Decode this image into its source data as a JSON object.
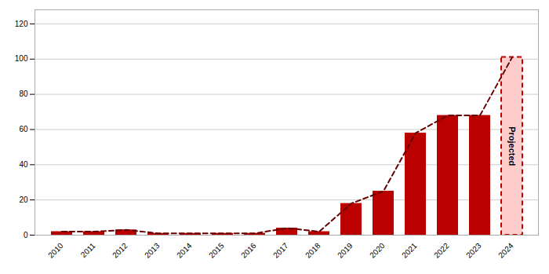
{
  "chart_data": {
    "type": "bar",
    "categories": [
      "2010",
      "2011",
      "2012",
      "2013",
      "2014",
      "2015",
      "2016",
      "2017",
      "2018",
      "2019",
      "2020",
      "2021",
      "2022",
      "2023",
      "2024"
    ],
    "series": [
      {
        "type": "bar",
        "colors": [
          "#BB0000",
          "#BB0000",
          "#BB0000",
          "#BB0000",
          "#BB0000",
          "#BB0000",
          "#BB0000",
          "#BB0000",
          "#BB0000",
          "#BB0000",
          "#BB0000",
          "#BB0000",
          "#BB0000",
          "#BB0000",
          "#FFCCCC"
        ],
        "values": [
          2,
          2,
          3,
          1,
          1,
          1,
          1,
          4,
          2,
          18,
          25,
          58,
          68,
          68,
          101
        ]
      },
      {
        "type": "line",
        "color": "#660000",
        "line_style": "dashed",
        "values": [
          2,
          2,
          3,
          1,
          1,
          1,
          1,
          4,
          2,
          18,
          25,
          58,
          68,
          68,
          101
        ]
      }
    ],
    "annotations": [
      {
        "text": "Projected",
        "category": "2024"
      }
    ],
    "ylim": [
      0,
      128
    ],
    "yticks": [
      0,
      20,
      40,
      60,
      80,
      100,
      120
    ],
    "grid": true
  }
}
